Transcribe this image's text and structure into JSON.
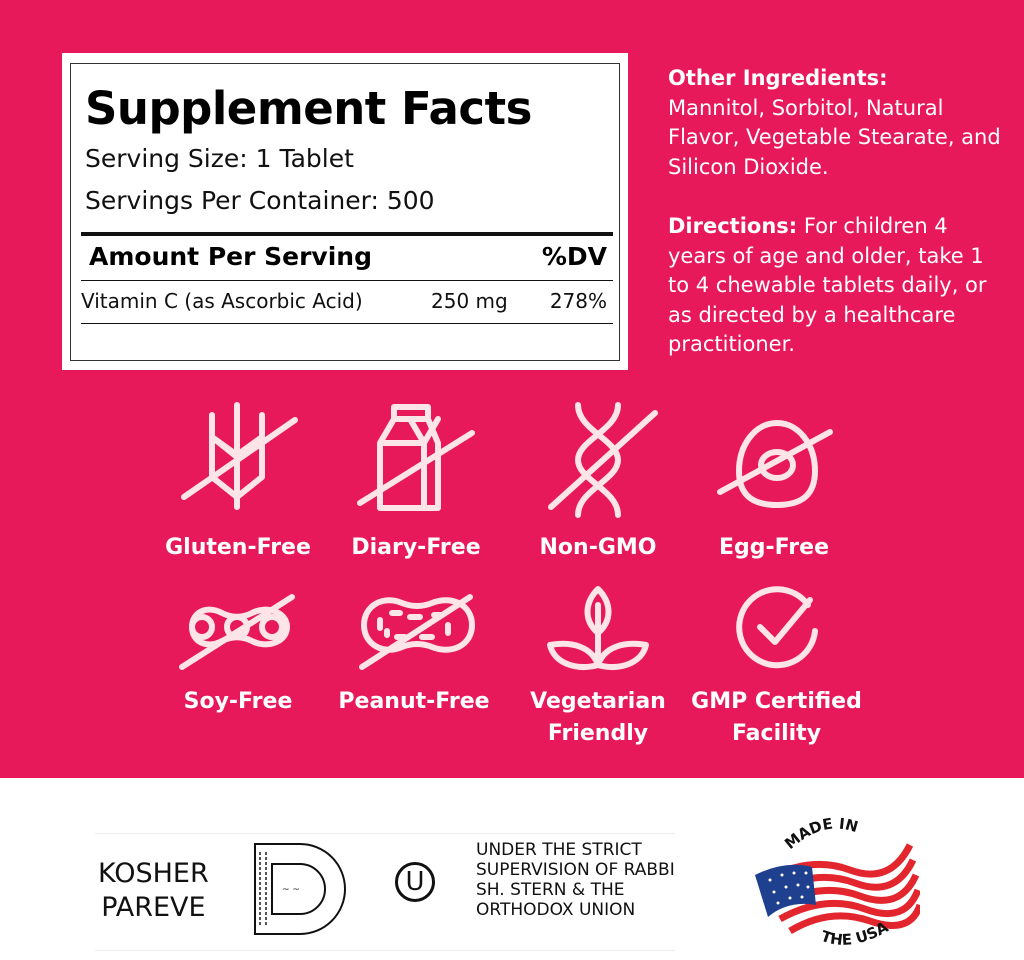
{
  "colors": {
    "background": "#e8195a",
    "icon": "#fce4e8",
    "text_light": "#ffffff"
  },
  "facts": {
    "title": "Supplement Facts",
    "serving_size": "Serving Size: 1 Tablet",
    "servings_per_container": "Servings Per Container: 500",
    "amount_header": "Amount Per Serving",
    "dv_header": "%DV",
    "rows": [
      {
        "name": "Vitamin C (as Ascorbic Acid)",
        "amount": "250 mg",
        "dv": "278%"
      }
    ]
  },
  "ingredients": {
    "heading": "Other Ingredients",
    "colon": ":",
    "text": "Mannitol, Sorbitol, Natural Flavor, Vegetable Stearate, and Silicon Dioxide."
  },
  "directions": {
    "heading": "Directions:",
    "text": "For children 4 years of age and older, take 1 to 4 chewable tablets daily, or as directed by a healthcare practitioner."
  },
  "badges": [
    {
      "label": "Gluten-Free",
      "icon": "wheat-crossed-icon"
    },
    {
      "label": "Diary-Free",
      "icon": "milk-carton-crossed-icon"
    },
    {
      "label": "Non-GMO",
      "icon": "dna-crossed-icon"
    },
    {
      "label": "Egg-Free",
      "icon": "egg-crossed-icon"
    },
    {
      "label": "Soy-Free",
      "icon": "soybean-crossed-icon"
    },
    {
      "label": "Peanut-Free",
      "icon": "peanut-crossed-icon"
    },
    {
      "label": "Vegetarian Friendly",
      "icon": "leaf-plant-icon"
    },
    {
      "label": "GMP Certified Facility",
      "icon": "check-circle-icon"
    }
  ],
  "kosher": {
    "line1": "KOSHER",
    "line2": "PAREVE",
    "ou_symbol": "U",
    "supervision": "UNDER THE STRICT SUPERVISION OF RABBI SH. STERN & THE ORTHODOX UNION"
  },
  "usa": {
    "top": "MADE IN",
    "bottom": "THE USA"
  }
}
